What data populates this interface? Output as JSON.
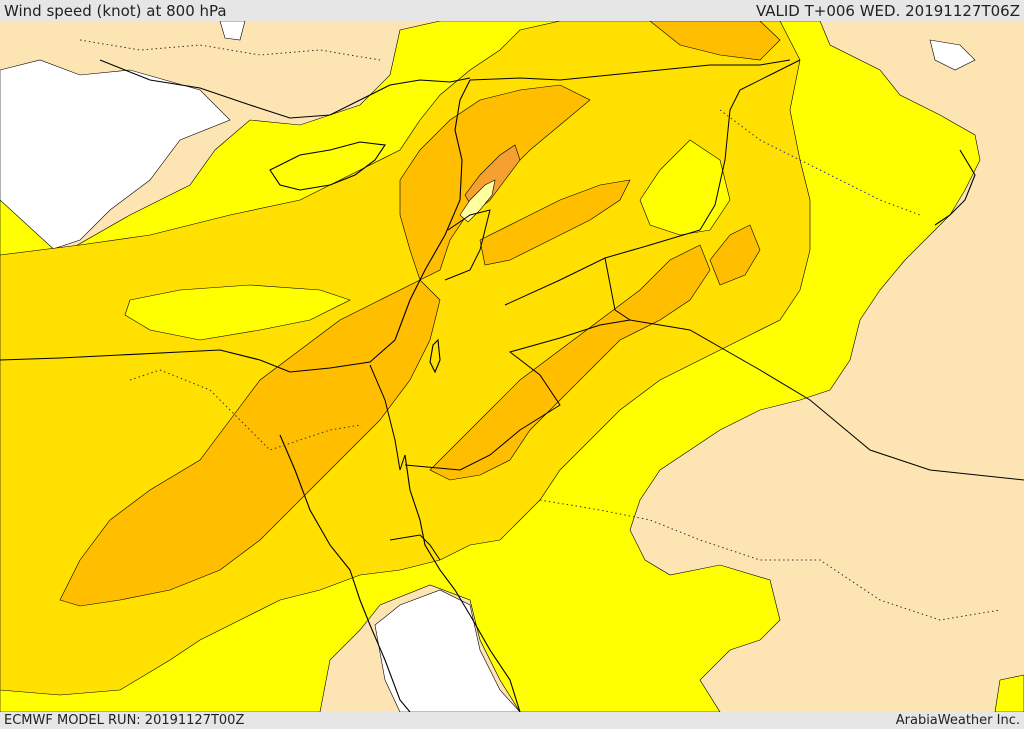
{
  "header": {
    "title": "Wind speed (knot) at 800 hPa",
    "valid": "VALID T+006 WED. 20191127T06Z"
  },
  "footer": {
    "model_run": "ECMWF MODEL RUN: 20191127T00Z",
    "credit": "ArabiaWeather Inc."
  },
  "colors": {
    "calm": "#ffffff",
    "light": "#fde4b3",
    "moderate": "#ffff00",
    "fresh": "#ffe000",
    "strong": "#ffbe00",
    "very_strong": "#f5a030",
    "peak": "#ffffa0"
  }
}
